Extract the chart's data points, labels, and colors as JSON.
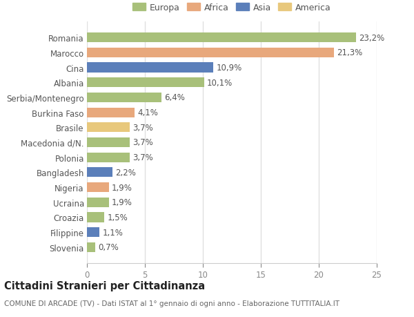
{
  "categories": [
    "Romania",
    "Marocco",
    "Cina",
    "Albania",
    "Serbia/Montenegro",
    "Burkina Faso",
    "Brasile",
    "Macedonia d/N.",
    "Polonia",
    "Bangladesh",
    "Nigeria",
    "Ucraina",
    "Croazia",
    "Filippine",
    "Slovenia"
  ],
  "values": [
    23.2,
    21.3,
    10.9,
    10.1,
    6.4,
    4.1,
    3.7,
    3.7,
    3.7,
    2.2,
    1.9,
    1.9,
    1.5,
    1.1,
    0.7
  ],
  "labels": [
    "23,2%",
    "21,3%",
    "10,9%",
    "10,1%",
    "6,4%",
    "4,1%",
    "3,7%",
    "3,7%",
    "3,7%",
    "2,2%",
    "1,9%",
    "1,9%",
    "1,5%",
    "1,1%",
    "0,7%"
  ],
  "colors": [
    "#a8c07a",
    "#e8a87c",
    "#5b7fba",
    "#a8c07a",
    "#a8c07a",
    "#e8a87c",
    "#e8c87c",
    "#a8c07a",
    "#a8c07a",
    "#5b7fba",
    "#e8a87c",
    "#a8c07a",
    "#a8c07a",
    "#5b7fba",
    "#a8c07a"
  ],
  "legend_labels": [
    "Europa",
    "Africa",
    "Asia",
    "America"
  ],
  "legend_colors": [
    "#a8c07a",
    "#e8a87c",
    "#5b7fba",
    "#e8c87c"
  ],
  "title": "Cittadini Stranieri per Cittadinanza",
  "subtitle": "COMUNE DI ARCADE (TV) - Dati ISTAT al 1° gennaio di ogni anno - Elaborazione TUTTITALIA.IT",
  "xlim": [
    0,
    25
  ],
  "xticks": [
    0,
    5,
    10,
    15,
    20,
    25
  ],
  "bg_color": "#ffffff",
  "plot_bg_color": "#ffffff",
  "grid_color": "#e0e0e0",
  "bar_height": 0.65,
  "label_fontsize": 8.5,
  "tick_fontsize": 8.5,
  "title_fontsize": 10.5,
  "subtitle_fontsize": 7.5
}
